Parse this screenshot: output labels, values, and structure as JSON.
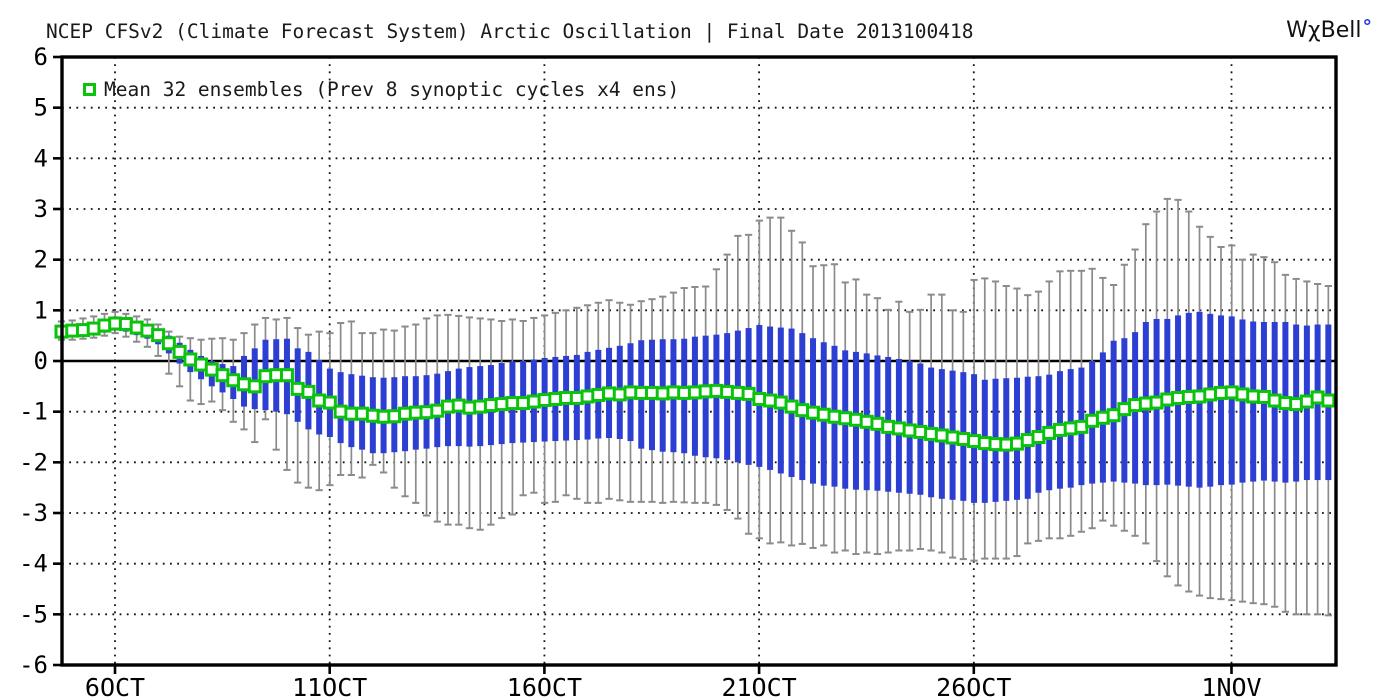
{
  "header": {
    "title": "NCEP CFSv2 (Climate Forecast System) Arctic Oscillation | Final Date 2013100418",
    "logo_text": "WχBell",
    "logo_degree": "°"
  },
  "legend": {
    "label": "Mean 32 ensembles (Prev 8 synoptic cycles x4 ens)"
  },
  "colors": {
    "box_blue": "#2d3fd3",
    "mean_green": "#0cc30c",
    "marker_fill": "#ffffff",
    "whisker_gray": "#8b8b8b",
    "axis_black": "#000000",
    "logo_degree_blue": "#2036df"
  },
  "chart_data": {
    "type": "line",
    "title": "NCEP CFSv2 (Climate Forecast System) Arctic Oscillation | Final Date 2013100418",
    "xlabel": "",
    "ylabel": "",
    "ylim": [
      -6,
      6
    ],
    "grid": "dotted horizontal at integers, dotted vertical at date ticks, solid line at 0",
    "legend_position": "top-left inside plot",
    "x_tick_labels": [
      "6OCT",
      "11OCT",
      "16OCT",
      "21OCT",
      "26OCT",
      "1NOV"
    ],
    "y_tick_labels": [
      "6",
      "5",
      "4",
      "3",
      "2",
      "1",
      "0",
      "-1",
      "-2",
      "-3",
      "-4",
      "-5",
      "-6"
    ],
    "time_step": "6-hourly forecast steps, 119 points",
    "series": [
      {
        "name": "ensemble mean",
        "values": [
          0.58,
          0.6,
          0.61,
          0.64,
          0.7,
          0.74,
          0.73,
          0.66,
          0.6,
          0.51,
          0.35,
          0.18,
          0.03,
          -0.07,
          -0.17,
          -0.28,
          -0.38,
          -0.46,
          -0.5,
          -0.3,
          -0.28,
          -0.28,
          -0.55,
          -0.61,
          -0.78,
          -0.82,
          -1.0,
          -1.04,
          -1.04,
          -1.08,
          -1.1,
          -1.09,
          -1.04,
          -1.02,
          -1.01,
          -0.98,
          -0.9,
          -0.88,
          -0.92,
          -0.9,
          -0.87,
          -0.85,
          -0.83,
          -0.83,
          -0.8,
          -0.77,
          -0.75,
          -0.73,
          -0.73,
          -0.7,
          -0.67,
          -0.64,
          -0.66,
          -0.62,
          -0.63,
          -0.63,
          -0.64,
          -0.62,
          -0.63,
          -0.62,
          -0.6,
          -0.59,
          -0.61,
          -0.63,
          -0.65,
          -0.75,
          -0.78,
          -0.82,
          -0.9,
          -0.97,
          -1.02,
          -1.06,
          -1.1,
          -1.13,
          -1.16,
          -1.2,
          -1.24,
          -1.3,
          -1.33,
          -1.37,
          -1.4,
          -1.44,
          -1.47,
          -1.51,
          -1.54,
          -1.58,
          -1.62,
          -1.64,
          -1.65,
          -1.63,
          -1.56,
          -1.5,
          -1.42,
          -1.36,
          -1.33,
          -1.3,
          -1.18,
          -1.12,
          -1.07,
          -0.95,
          -0.87,
          -0.84,
          -0.82,
          -0.76,
          -0.73,
          -0.71,
          -0.7,
          -0.66,
          -0.63,
          -0.62,
          -0.66,
          -0.7,
          -0.71,
          -0.78,
          -0.83,
          -0.85,
          -0.8,
          -0.72,
          -0.78
        ]
      },
      {
        "name": "ensemble box top",
        "values": [
          0.7,
          0.72,
          0.74,
          0.77,
          0.83,
          0.88,
          0.86,
          0.79,
          0.73,
          0.64,
          0.5,
          0.36,
          0.22,
          0.1,
          0.0,
          -0.06,
          -0.1,
          0.1,
          0.25,
          0.42,
          0.43,
          0.44,
          0.25,
          0.18,
          0.02,
          -0.15,
          -0.22,
          -0.26,
          -0.29,
          -0.32,
          -0.33,
          -0.32,
          -0.3,
          -0.3,
          -0.28,
          -0.25,
          -0.2,
          -0.15,
          -0.12,
          -0.1,
          -0.08,
          -0.04,
          -0.01,
          0.0,
          0.03,
          0.06,
          0.08,
          0.1,
          0.12,
          0.18,
          0.22,
          0.26,
          0.3,
          0.35,
          0.41,
          0.42,
          0.43,
          0.43,
          0.44,
          0.48,
          0.5,
          0.52,
          0.55,
          0.6,
          0.65,
          0.71,
          0.68,
          0.66,
          0.64,
          0.55,
          0.45,
          0.37,
          0.3,
          0.21,
          0.18,
          0.15,
          0.11,
          0.08,
          0.04,
          0.0,
          -0.05,
          -0.13,
          -0.16,
          -0.19,
          -0.22,
          -0.26,
          -0.37,
          -0.35,
          -0.34,
          -0.33,
          -0.31,
          -0.3,
          -0.27,
          -0.2,
          -0.16,
          -0.13,
          0.0,
          0.17,
          0.4,
          0.45,
          0.57,
          0.77,
          0.83,
          0.83,
          0.9,
          0.95,
          0.97,
          0.93,
          0.9,
          0.88,
          0.82,
          0.78,
          0.77,
          0.77,
          0.77,
          0.72,
          0.7,
          0.72,
          0.72
        ]
      },
      {
        "name": "ensemble box bottom",
        "values": [
          0.46,
          0.48,
          0.5,
          0.52,
          0.56,
          0.6,
          0.58,
          0.51,
          0.44,
          0.33,
          0.15,
          -0.05,
          -0.22,
          -0.36,
          -0.5,
          -0.62,
          -0.75,
          -0.9,
          -0.95,
          -0.97,
          -1.0,
          -1.05,
          -1.2,
          -1.35,
          -1.45,
          -1.5,
          -1.62,
          -1.7,
          -1.75,
          -1.82,
          -1.82,
          -1.8,
          -1.78,
          -1.75,
          -1.73,
          -1.7,
          -1.68,
          -1.68,
          -1.69,
          -1.68,
          -1.66,
          -1.64,
          -1.62,
          -1.61,
          -1.6,
          -1.59,
          -1.58,
          -1.57,
          -1.56,
          -1.55,
          -1.53,
          -1.52,
          -1.54,
          -1.58,
          -1.73,
          -1.76,
          -1.79,
          -1.8,
          -1.82,
          -1.87,
          -1.9,
          -1.92,
          -1.95,
          -2.0,
          -2.05,
          -2.09,
          -2.15,
          -2.22,
          -2.29,
          -2.35,
          -2.42,
          -2.46,
          -2.48,
          -2.52,
          -2.54,
          -2.55,
          -2.56,
          -2.58,
          -2.6,
          -2.62,
          -2.64,
          -2.69,
          -2.72,
          -2.74,
          -2.76,
          -2.8,
          -2.8,
          -2.78,
          -2.76,
          -2.74,
          -2.72,
          -2.6,
          -2.55,
          -2.52,
          -2.5,
          -2.45,
          -2.42,
          -2.4,
          -2.38,
          -2.4,
          -2.42,
          -2.45,
          -2.45,
          -2.44,
          -2.46,
          -2.48,
          -2.5,
          -2.48,
          -2.45,
          -2.44,
          -2.4,
          -2.38,
          -2.36,
          -2.38,
          -2.4,
          -2.38,
          -2.35,
          -2.35,
          -2.35
        ]
      },
      {
        "name": "whisker max",
        "values": [
          0.78,
          0.8,
          0.84,
          0.88,
          0.93,
          0.97,
          0.93,
          0.88,
          0.82,
          0.72,
          0.58,
          0.48,
          0.45,
          0.42,
          0.44,
          0.45,
          0.42,
          0.55,
          0.72,
          0.85,
          0.82,
          0.85,
          0.65,
          0.52,
          0.58,
          0.55,
          0.75,
          0.78,
          0.55,
          0.55,
          0.62,
          0.6,
          0.68,
          0.72,
          0.84,
          0.9,
          0.91,
          0.89,
          0.86,
          0.84,
          0.82,
          0.79,
          0.82,
          0.79,
          0.85,
          0.9,
          0.95,
          1.0,
          1.05,
          1.1,
          1.15,
          1.2,
          1.15,
          1.11,
          1.18,
          1.22,
          1.27,
          1.35,
          1.44,
          1.46,
          1.47,
          1.81,
          2.1,
          2.47,
          2.49,
          2.77,
          2.83,
          2.83,
          2.57,
          2.34,
          1.87,
          1.89,
          1.91,
          1.55,
          1.61,
          1.31,
          1.24,
          1.01,
          1.17,
          0.97,
          1.01,
          1.31,
          1.31,
          1.0,
          0.97,
          1.6,
          1.63,
          1.57,
          1.48,
          1.43,
          1.3,
          1.37,
          1.57,
          1.77,
          1.78,
          1.78,
          1.82,
          1.64,
          1.5,
          1.9,
          2.2,
          2.7,
          2.95,
          3.2,
          3.18,
          2.95,
          2.65,
          2.45,
          2.25,
          2.28,
          2.0,
          2.1,
          2.05,
          1.95,
          1.7,
          1.62,
          1.57,
          1.52,
          1.48
        ]
      },
      {
        "name": "whisker min",
        "values": [
          0.42,
          0.42,
          0.44,
          0.46,
          0.5,
          0.55,
          0.48,
          0.38,
          0.28,
          0.1,
          -0.25,
          -0.5,
          -0.78,
          -0.85,
          -0.8,
          -0.97,
          -1.2,
          -1.35,
          -1.6,
          -1.15,
          -1.75,
          -2.15,
          -2.4,
          -2.5,
          -2.55,
          -2.45,
          -2.25,
          -2.25,
          -2.3,
          -2.05,
          -2.2,
          -2.5,
          -2.67,
          -2.8,
          -3.05,
          -3.17,
          -3.23,
          -3.23,
          -3.3,
          -3.33,
          -3.23,
          -3.1,
          -3.03,
          -2.65,
          -2.6,
          -2.8,
          -2.78,
          -2.65,
          -2.72,
          -2.8,
          -2.8,
          -2.72,
          -2.75,
          -2.78,
          -2.78,
          -2.78,
          -2.8,
          -2.78,
          -2.79,
          -2.8,
          -2.8,
          -2.84,
          -2.94,
          -3.11,
          -3.41,
          -3.5,
          -3.6,
          -3.58,
          -3.64,
          -3.61,
          -3.69,
          -3.64,
          -3.78,
          -3.74,
          -3.81,
          -3.78,
          -3.81,
          -3.78,
          -3.74,
          -3.74,
          -3.71,
          -3.74,
          -3.78,
          -3.88,
          -3.91,
          -3.94,
          -3.9,
          -3.9,
          -3.9,
          -3.85,
          -3.6,
          -3.55,
          -3.5,
          -3.5,
          -3.45,
          -3.37,
          -3.3,
          -3.15,
          -3.25,
          -3.35,
          -3.45,
          -3.6,
          -3.95,
          -4.25,
          -4.43,
          -4.55,
          -4.63,
          -4.68,
          -4.7,
          -4.72,
          -4.75,
          -4.78,
          -4.8,
          -4.85,
          -4.95,
          -5.0,
          -5.0,
          -5.0,
          -5.02
        ]
      }
    ]
  }
}
